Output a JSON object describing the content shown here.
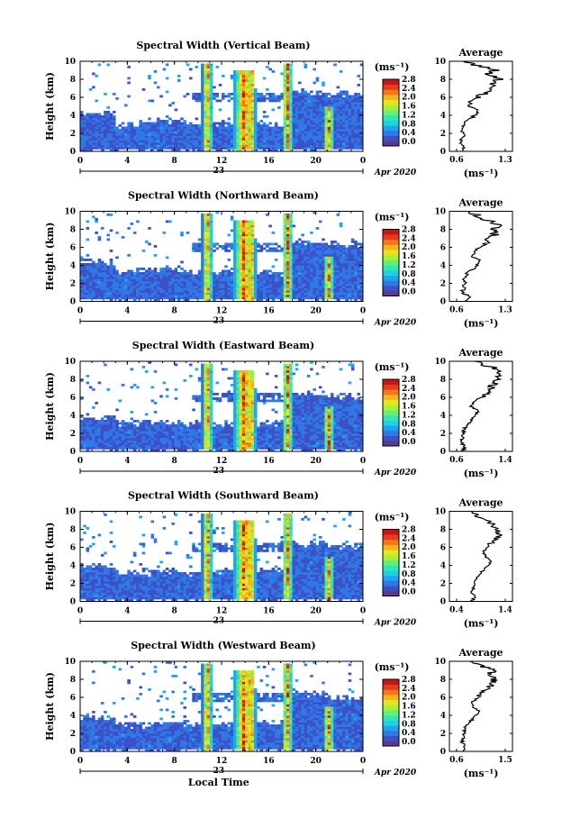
{
  "figure": {
    "xlabel": "Local Time",
    "date_label": "Apr 2020",
    "day_label": "23",
    "cbar_unit": "(ms⁻¹)",
    "avg_title": "Average",
    "avg_unit": "(ms⁻¹)",
    "colors": [
      "#5a3a8a",
      "#3c50c8",
      "#2f78e6",
      "#1ea5f0",
      "#1ed2e6",
      "#32e6b4",
      "#64f078",
      "#aaf032",
      "#e6e61e",
      "#f5b41e",
      "#f57814",
      "#e63c1e",
      "#c81414"
    ]
  },
  "chart_data": [
    {
      "type": "heatmap",
      "title": "Spectral Width (Vertical Beam)",
      "ylabel": "Height (km)",
      "xlim": [
        0,
        24
      ],
      "ylim": [
        0,
        10
      ],
      "xticks": [
        "0",
        "4",
        "8",
        "12",
        "16",
        "20",
        "0"
      ],
      "yticks": [
        "0",
        "2",
        "4",
        "6",
        "8",
        "10"
      ],
      "cbar_ticks": [
        "0.0",
        "0.4",
        "0.8",
        "1.2",
        "1.6",
        "2.0",
        "2.4",
        "2.8"
      ],
      "cbar_range": [
        0,
        3.0
      ],
      "layer_top_km": [
        4.2,
        3.0,
        3.5,
        3.0,
        3.2,
        3.0,
        6.6,
        6.4
      ],
      "average": {
        "xlim": [
          0.6,
          1.3
        ],
        "xticks": [
          "0.6",
          "1.3"
        ],
        "height_km": [
          0,
          0.5,
          1,
          1.5,
          2,
          2.5,
          3,
          3.5,
          4,
          4.5,
          5,
          5.5,
          6,
          6.5,
          7,
          7.5,
          8,
          8.5,
          9,
          9.5,
          10
        ],
        "value": [
          0.66,
          0.72,
          0.66,
          0.68,
          0.7,
          0.68,
          0.7,
          0.78,
          0.86,
          0.9,
          0.78,
          0.8,
          0.92,
          1.0,
          1.08,
          1.12,
          1.2,
          1.05,
          1.15,
          0.9,
          0.7
        ]
      }
    },
    {
      "type": "heatmap",
      "title": "Spectral Width (Northward Beam)",
      "ylabel": "Height (km)",
      "xlim": [
        0,
        24
      ],
      "ylim": [
        0,
        10
      ],
      "xticks": [
        "0",
        "4",
        "8",
        "12",
        "16",
        "20",
        "0"
      ],
      "yticks": [
        "0",
        "2",
        "4",
        "6",
        "8",
        "10"
      ],
      "cbar_ticks": [
        "0.0",
        "0.4",
        "0.8",
        "1.2",
        "1.6",
        "2.0",
        "2.4",
        "2.8"
      ],
      "cbar_range": [
        0,
        3.0
      ],
      "layer_top_km": [
        4.4,
        3.4,
        3.6,
        3.2,
        3.4,
        3.2,
        6.6,
        6.4
      ],
      "average": {
        "xlim": [
          0.6,
          1.3
        ],
        "xticks": [
          "0.6",
          "1.3"
        ],
        "height_km": [
          0,
          0.5,
          1,
          1.5,
          2,
          2.5,
          3,
          3.5,
          4,
          4.5,
          5,
          5.5,
          6,
          6.5,
          7,
          7.5,
          8,
          8.5,
          9,
          9.5,
          10
        ],
        "value": [
          0.7,
          0.78,
          0.68,
          0.7,
          0.72,
          0.7,
          0.74,
          0.82,
          0.9,
          0.95,
          0.82,
          0.84,
          0.95,
          1.02,
          1.1,
          1.15,
          1.1,
          1.2,
          1.05,
          0.9,
          0.8
        ]
      }
    },
    {
      "type": "heatmap",
      "title": "Spectral Width (Eastward Beam)",
      "ylabel": "Height (km)",
      "xlim": [
        0,
        24
      ],
      "ylim": [
        0,
        10
      ],
      "xticks": [
        "0",
        "4",
        "8",
        "12",
        "16",
        "20",
        "0"
      ],
      "yticks": [
        "0",
        "2",
        "4",
        "6",
        "8",
        "10"
      ],
      "cbar_ticks": [
        "0.0",
        "0.4",
        "0.8",
        "1.2",
        "1.6",
        "2.0",
        "2.4",
        "2.8"
      ],
      "cbar_range": [
        0,
        3.0
      ],
      "layer_top_km": [
        3.8,
        3.2,
        3.2,
        3.0,
        3.0,
        3.2,
        6.4,
        6.2
      ],
      "average": {
        "xlim": [
          0.6,
          1.4
        ],
        "xticks": [
          "0.6",
          "1.4"
        ],
        "height_km": [
          0,
          0.5,
          1,
          1.5,
          2,
          2.5,
          3,
          3.5,
          4,
          4.5,
          5,
          5.5,
          6,
          6.5,
          7,
          7.5,
          8,
          8.5,
          9,
          9.5,
          10
        ],
        "value": [
          0.7,
          0.74,
          0.68,
          0.7,
          0.72,
          0.72,
          0.78,
          0.85,
          0.92,
          0.96,
          0.84,
          0.9,
          1.0,
          1.08,
          1.15,
          1.2,
          1.3,
          1.25,
          1.35,
          1.1,
          0.9
        ]
      }
    },
    {
      "type": "heatmap",
      "title": "Spectral Width (Southward Beam)",
      "ylabel": "Height (km)",
      "xlim": [
        0,
        24
      ],
      "ylim": [
        0,
        10
      ],
      "xticks": [
        "0",
        "4",
        "8",
        "12",
        "16",
        "20",
        "0"
      ],
      "yticks": [
        "0",
        "2",
        "4",
        "6",
        "8",
        "10"
      ],
      "cbar_ticks": [
        "0.0",
        "0.4",
        "0.8",
        "1.2",
        "1.6",
        "2.0",
        "2.4",
        "2.8"
      ],
      "cbar_range": [
        0,
        3.0
      ],
      "layer_top_km": [
        4.0,
        3.2,
        3.4,
        3.2,
        3.4,
        3.6,
        6.4,
        6.2
      ],
      "average": {
        "xlim": [
          0.4,
          1.4
        ],
        "xticks": [
          "0.4",
          "1.4"
        ],
        "height_km": [
          0,
          0.5,
          1,
          1.5,
          2,
          2.5,
          3,
          3.5,
          4,
          4.5,
          5,
          5.5,
          6,
          6.5,
          7,
          7.5,
          8,
          8.5,
          9,
          9.5,
          10
        ],
        "value": [
          0.7,
          0.78,
          0.72,
          0.74,
          0.78,
          0.8,
          0.86,
          0.96,
          1.05,
          1.1,
          0.98,
          0.95,
          1.02,
          1.12,
          1.2,
          1.28,
          1.22,
          1.15,
          1.0,
          0.8,
          0.7
        ]
      }
    },
    {
      "type": "heatmap",
      "title": "Spectral Width (Westward Beam)",
      "ylabel": "Height (km)",
      "xlim": [
        0,
        24
      ],
      "ylim": [
        0,
        10
      ],
      "xticks": [
        "0",
        "4",
        "8",
        "12",
        "16",
        "20",
        "0"
      ],
      "yticks": [
        "0",
        "2",
        "4",
        "6",
        "8",
        "10"
      ],
      "cbar_ticks": [
        "0.0",
        "0.4",
        "0.8",
        "1.2",
        "1.6",
        "2.0",
        "2.4",
        "2.8"
      ],
      "cbar_range": [
        0,
        3.0
      ],
      "layer_top_km": [
        3.8,
        3.0,
        3.2,
        3.0,
        3.2,
        3.2,
        6.4,
        6.0
      ],
      "average": {
        "xlim": [
          0.6,
          1.5
        ],
        "xticks": [
          "0.6",
          "1.5"
        ],
        "height_km": [
          0,
          0.5,
          1,
          1.5,
          2,
          2.5,
          3,
          3.5,
          4,
          4.5,
          5,
          5.5,
          6,
          6.5,
          7,
          7.5,
          8,
          8.5,
          9,
          9.5,
          10
        ],
        "value": [
          0.7,
          0.76,
          0.7,
          0.72,
          0.74,
          0.74,
          0.8,
          0.88,
          0.96,
          1.0,
          0.88,
          0.9,
          1.0,
          1.1,
          1.18,
          1.25,
          1.3,
          1.2,
          1.3,
          1.05,
          0.85
        ]
      }
    }
  ]
}
